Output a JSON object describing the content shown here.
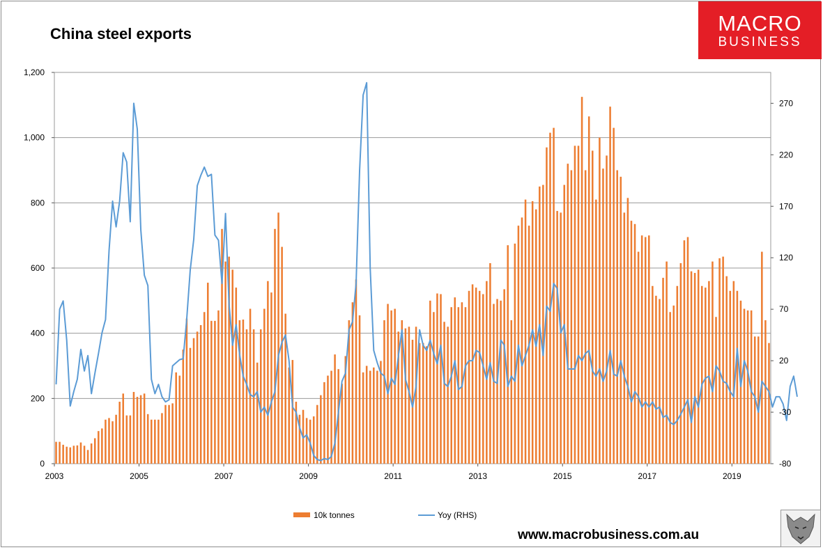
{
  "header": {
    "title": "China steel exports"
  },
  "logo": {
    "line1": "MACRO",
    "line2": "BUSINESS"
  },
  "footer": {
    "url": "www.macrobusiness.com.au"
  },
  "colors": {
    "bars": "#ed7d31",
    "line": "#5b9bd5",
    "logo_bg": "#e41e26",
    "grid": "#9a9a9a"
  },
  "chart_data": {
    "type": "bar",
    "title": "China steel exports",
    "x_start": "2003-01",
    "frequency": "monthly",
    "x_tick_labels": [
      "2003",
      "2005",
      "2007",
      "2009",
      "2011",
      "2013",
      "2015",
      "2017",
      "2019"
    ],
    "y_left": {
      "ticks": [
        "0",
        "200",
        "400",
        "600",
        "800",
        "1,000",
        "1,200"
      ],
      "range": [
        0,
        1200
      ]
    },
    "y_right": {
      "ticks": [
        "-80",
        "-30",
        "20",
        "70",
        "120",
        "170",
        "220",
        "270"
      ],
      "range": [
        -80,
        300
      ]
    },
    "grid": true,
    "legend_position": "bottom",
    "series": [
      {
        "name": "10k tonnes",
        "axis": "left",
        "kind": "bar",
        "values": [
          67,
          67,
          58,
          52,
          50,
          55,
          56,
          65,
          55,
          42,
          62,
          78,
          100,
          108,
          135,
          140,
          130,
          150,
          190,
          215,
          148,
          148,
          220,
          205,
          210,
          215,
          152,
          135,
          135,
          135,
          155,
          180,
          180,
          185,
          280,
          270,
          350,
          445,
          355,
          385,
          405,
          425,
          465,
          555,
          438,
          438,
          470,
          720,
          620,
          635,
          595,
          540,
          440,
          442,
          412,
          475,
          412,
          310,
          412,
          475,
          560,
          525,
          720,
          770,
          665,
          460,
          295,
          318,
          190,
          150,
          165,
          140,
          135,
          145,
          180,
          210,
          250,
          270,
          285,
          335,
          290,
          245,
          330,
          440,
          495,
          565,
          455,
          280,
          300,
          285,
          295,
          285,
          315,
          440,
          490,
          470,
          475,
          405,
          440,
          415,
          420,
          380,
          420,
          370,
          370,
          360,
          500,
          465,
          522,
          520,
          435,
          420,
          480,
          510,
          480,
          495,
          480,
          530,
          550,
          540,
          530,
          520,
          560,
          615,
          490,
          505,
          500,
          535,
          670,
          440,
          675,
          730,
          755,
          810,
          730,
          805,
          780,
          850,
          855,
          970,
          1015,
          1030,
          775,
          770,
          855,
          920,
          900,
          975,
          975,
          1125,
          900,
          1065,
          960,
          810,
          1000,
          905,
          945,
          1095,
          1030,
          900,
          880,
          770,
          815,
          745,
          735,
          650,
          700,
          695,
          700,
          545,
          515,
          505,
          570,
          620,
          465,
          485,
          545,
          615,
          685,
          695,
          590,
          585,
          595,
          545,
          540,
          560,
          620,
          450,
          630,
          635,
          575,
          530,
          560,
          530,
          500,
          475,
          470,
          470,
          390,
          390,
          650,
          440,
          370
        ]
      },
      {
        "name": "Yoy (RHS)",
        "axis": "right",
        "kind": "line",
        "values": [
          -3,
          70,
          78,
          40,
          -24,
          -10,
          2,
          31,
          10,
          25,
          -12,
          8,
          27,
          47,
          60,
          127,
          175,
          150,
          175,
          222,
          213,
          155,
          270,
          245,
          147,
          103,
          93,
          2,
          -12,
          -3,
          -15,
          -20,
          -18,
          15,
          18,
          21,
          22,
          60,
          108,
          138,
          190,
          200,
          208,
          199,
          201,
          142,
          137,
          95,
          163,
          75,
          35,
          55,
          26,
          5,
          -3,
          -13,
          -15,
          -10,
          -30,
          -25,
          -33,
          -20,
          -10,
          25,
          38,
          45,
          20,
          -25,
          -30,
          -45,
          -55,
          -52,
          -60,
          -72,
          -76,
          -77,
          -75,
          -76,
          -73,
          -60,
          -30,
          0,
          8,
          50,
          58,
          95,
          205,
          278,
          290,
          110,
          30,
          18,
          8,
          5,
          -12,
          3,
          -3,
          25,
          50,
          2,
          -10,
          -25,
          -5,
          50,
          35,
          30,
          40,
          27,
          17,
          35,
          -2,
          -5,
          5,
          20,
          -8,
          -5,
          15,
          20,
          20,
          30,
          28,
          15,
          2,
          18,
          0,
          -2,
          40,
          35,
          -5,
          5,
          0,
          35,
          15,
          25,
          35,
          50,
          34,
          55,
          25,
          73,
          68,
          95,
          90,
          47,
          55,
          12,
          12,
          12,
          25,
          20,
          27,
          30,
          10,
          5,
          12,
          0,
          10,
          30,
          7,
          5,
          20,
          5,
          -5,
          -20,
          -10,
          -15,
          -25,
          -20,
          -25,
          -20,
          -27,
          -25,
          -35,
          -33,
          -40,
          -42,
          -38,
          -32,
          -25,
          -18,
          -40,
          -15,
          -25,
          -3,
          3,
          5,
          -10,
          15,
          10,
          0,
          -2,
          -10,
          -15,
          32,
          -5,
          20,
          10,
          -10,
          -15,
          -30,
          0,
          -5,
          -10,
          -25,
          -15,
          -15,
          -22,
          -38,
          -5,
          5,
          -15
        ]
      }
    ]
  }
}
